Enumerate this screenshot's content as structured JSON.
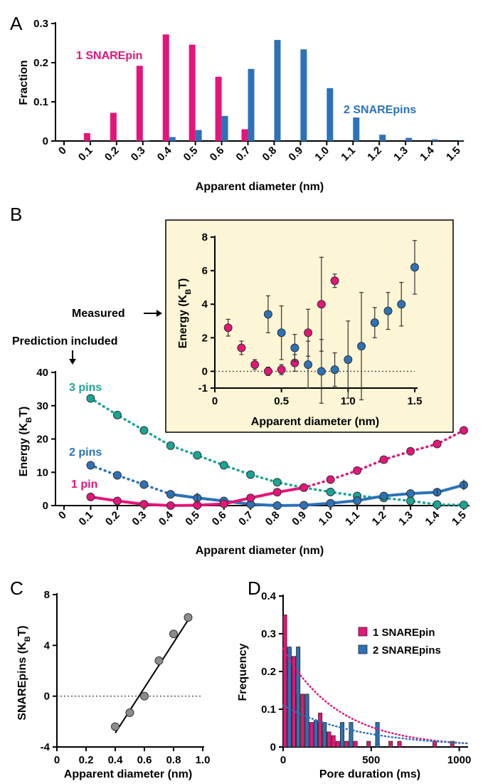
{
  "colors": {
    "one_pin": "#e5147a",
    "two_pin": "#2c72b8",
    "three_pin": "#1aa596",
    "inset_bg": "#fcf5d6",
    "grey": "#8c8c8c"
  },
  "chart_data": [
    {
      "panel": "A",
      "type": "bar",
      "xlabel": "Apparent diameter (nm)",
      "ylabel": "Fraction",
      "ylim": [
        0,
        0.3
      ],
      "yticks": [
        "0",
        "0.1",
        "0.2",
        "0.3"
      ],
      "categories": [
        "0",
        "0.1",
        "0.2",
        "0.3",
        "0.4",
        "0.5",
        "0.6",
        "0.7",
        "0.8",
        "0.9",
        "1.0",
        "1.1",
        "1.2",
        "1.3",
        "1.4",
        "1.5"
      ],
      "series": [
        {
          "name": "1 SNAREpin",
          "values": [
            0,
            0.02,
            0.072,
            0.192,
            0.272,
            0.246,
            0.164,
            0.03,
            0,
            0,
            0,
            0,
            0,
            0,
            0,
            0
          ]
        },
        {
          "name": "2 SNAREpins",
          "values": [
            0,
            0,
            0,
            0.002,
            0.01,
            0.028,
            0.064,
            0.184,
            0.258,
            0.234,
            0.135,
            0.06,
            0.016,
            0.008,
            0.004,
            0.001
          ]
        }
      ]
    },
    {
      "panel": "B",
      "type": "line",
      "xlabel": "Apparent diameter (nm)",
      "ylabel": "Energy (KBT)",
      "ylim": [
        0,
        40
      ],
      "yticks": [
        "0",
        "10",
        "20",
        "30",
        "40"
      ],
      "xticks": [
        "0",
        "0.1",
        "0.2",
        "0.3",
        "0.4",
        "0.5",
        "0.6",
        "0.7",
        "0.8",
        "0.9",
        "1.0",
        "1.1",
        "1.2",
        "1.3",
        "1.4",
        "1.5"
      ],
      "annotations": {
        "measured": "Measured",
        "prediction": "Prediction included"
      },
      "series": [
        {
          "name": "3 pins",
          "x": [
            0.1,
            0.2,
            0.3,
            0.4,
            0.5,
            0.6,
            0.7,
            0.8,
            0.9,
            1.0,
            1.1,
            1.2,
            1.3,
            1.4,
            1.5
          ],
          "y": [
            32.2,
            27.2,
            22.6,
            18.0,
            15.1,
            12.1,
            9.3,
            7.0,
            5.4,
            4.1,
            2.9,
            2.3,
            1.4,
            0.3,
            0.2
          ]
        },
        {
          "name": "2 pins",
          "x": [
            0.1,
            0.2,
            0.3,
            0.4,
            0.5,
            0.6,
            0.7,
            0.8,
            0.9,
            1.0,
            1.1,
            1.2,
            1.3,
            1.4,
            1.5
          ],
          "y": [
            12.1,
            9.1,
            6.3,
            3.4,
            2.3,
            1.4,
            0.4,
            0.0,
            0.1,
            0.7,
            1.5,
            2.9,
            3.6,
            4.0,
            6.2
          ]
        },
        {
          "name": "1 pin",
          "x": [
            0.1,
            0.2,
            0.3,
            0.4,
            0.5,
            0.6,
            0.7,
            0.8,
            0.9,
            1.0,
            1.1,
            1.2,
            1.3,
            1.4,
            1.5
          ],
          "y": [
            2.6,
            1.4,
            0.4,
            0.0,
            0.1,
            0.5,
            2.3,
            4.0,
            5.4,
            7.8,
            10.5,
            13.8,
            16.3,
            18.5,
            22.6
          ]
        }
      ],
      "inset": {
        "xlabel": "Apparent diameter (nm)",
        "ylabel": "Energy (KBT)",
        "xlim": [
          0,
          1.5
        ],
        "ylim": [
          -1,
          8
        ],
        "xticks": [
          "0",
          "0.5",
          "1.0",
          "1.5"
        ],
        "yticks": [
          "-1",
          "0",
          "2",
          "4",
          "6",
          "8"
        ],
        "series": [
          {
            "name": "1 SNAREpin",
            "x": [
              0.1,
              0.2,
              0.3,
              0.4,
              0.5,
              0.6,
              0.7,
              0.8,
              0.9
            ],
            "y": [
              2.6,
              1.4,
              0.4,
              0.0,
              0.1,
              0.5,
              2.3,
              4.0,
              5.4
            ],
            "err": [
              0.5,
              0.4,
              0.3,
              0.25,
              0.3,
              0.5,
              1.4,
              2.8,
              0.4
            ]
          },
          {
            "name": "2 SNAREpins",
            "x": [
              0.4,
              0.5,
              0.6,
              0.7,
              0.8,
              0.9,
              1.0,
              1.1,
              1.2,
              1.3,
              1.4,
              1.5
            ],
            "y": [
              3.4,
              2.3,
              1.4,
              0.4,
              0.0,
              0.1,
              0.7,
              1.5,
              2.9,
              3.6,
              4.0,
              6.2
            ],
            "err": [
              1.1,
              1.6,
              0.8,
              1.4,
              1.9,
              1.0,
              2.3,
              3.2,
              0.9,
              1.1,
              1.3,
              1.6
            ]
          }
        ]
      }
    },
    {
      "panel": "C",
      "type": "scatter",
      "xlabel": "Apparent diameter (nm)",
      "ylabel": "SNAREpins (KBT)",
      "xlim": [
        0,
        1.0
      ],
      "ylim": [
        -4,
        8
      ],
      "xticks": [
        "0",
        "0.2",
        "0.4",
        "0.6",
        "0.8",
        "1.0"
      ],
      "yticks": [
        "-4",
        "0",
        "4",
        "8"
      ],
      "x": [
        0.4,
        0.5,
        0.6,
        0.7,
        0.8,
        0.9
      ],
      "y": [
        -2.4,
        -1.3,
        0.0,
        2.8,
        4.9,
        6.2
      ],
      "fit": {
        "x": [
          0.4,
          0.9
        ],
        "y": [
          -2.9,
          6.0
        ]
      }
    },
    {
      "panel": "D",
      "type": "bar",
      "xlabel": "Pore duration (ms)",
      "ylabel": "Frequency",
      "xlim": [
        0,
        1050
      ],
      "ylim": [
        0,
        0.4
      ],
      "xticks": [
        "0",
        "500",
        "1000"
      ],
      "yticks": [
        "0",
        "0.1",
        "0.2",
        "0.3",
        "0.4"
      ],
      "series": [
        {
          "name": "1 SNAREpin",
          "bins": [
            0,
            25,
            50,
            75,
            100,
            125,
            150,
            175,
            200,
            225,
            250,
            275,
            300,
            350,
            400,
            475,
            525,
            600,
            650,
            850,
            950
          ],
          "values": [
            0.35,
            0.26,
            0.24,
            0.14,
            0.14,
            0.115,
            0.065,
            0.065,
            0.09,
            0.04,
            0.04,
            0.03,
            0.015,
            0.015,
            0.015,
            0.015,
            0.015,
            0.015,
            0.015,
            0.015,
            0.015
          ]
        },
        {
          "name": "2 SNAREpins",
          "bins": [
            25,
            75,
            125,
            175,
            225,
            325,
            375,
            525
          ],
          "values": [
            0.265,
            0.265,
            0.14,
            0.07,
            0.065,
            0.065,
            0.065,
            0.065
          ]
        }
      ],
      "fits": [
        {
          "name": "1 SNAREpin",
          "a": 0.26,
          "tau": 315
        },
        {
          "name": "2 SNAREpins",
          "a": 0.11,
          "tau": 430
        }
      ]
    }
  ]
}
